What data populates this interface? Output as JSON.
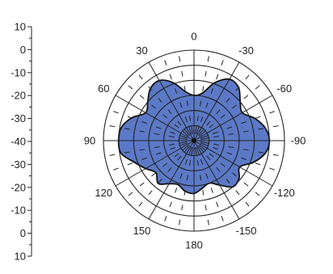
{
  "chart_data": {
    "type": "polar-area",
    "title": "",
    "angle_labels": [
      {
        "deg": 0,
        "text": "0"
      },
      {
        "deg": -30,
        "text": "-30"
      },
      {
        "deg": -60,
        "text": "-60"
      },
      {
        "deg": -90,
        "text": "-90"
      },
      {
        "deg": -120,
        "text": "-120"
      },
      {
        "deg": -150,
        "text": "-150"
      },
      {
        "deg": 180,
        "text": "180"
      },
      {
        "deg": 150,
        "text": "150"
      },
      {
        "deg": 120,
        "text": "120"
      },
      {
        "deg": 90,
        "text": "90"
      },
      {
        "deg": 60,
        "text": "60"
      },
      {
        "deg": 30,
        "text": "30"
      }
    ],
    "radial_axis": {
      "min": -50,
      "max": 10,
      "grid_levels": [
        -40,
        -30,
        -20,
        -10,
        0,
        10
      ],
      "tick_labels": [
        "10",
        "0",
        "-10",
        "-20",
        "-30",
        "-40",
        "-30",
        "-20",
        "-10",
        "0",
        "10"
      ]
    },
    "series": [
      {
        "fill_color": "#5b79c6",
        "line_color": "#111111",
        "points": [
          [
            0,
            -20
          ],
          [
            10,
            -17
          ],
          [
            20,
            -9
          ],
          [
            30,
            -4
          ],
          [
            40,
            -5
          ],
          [
            50,
            -10
          ],
          [
            60,
            -13
          ],
          [
            70,
            -6
          ],
          [
            80,
            -1
          ],
          [
            90,
            0
          ],
          [
            100,
            -1
          ],
          [
            110,
            -8
          ],
          [
            120,
            -13
          ],
          [
            130,
            -17
          ],
          [
            140,
            -13
          ],
          [
            150,
            -17
          ],
          [
            160,
            -19
          ],
          [
            170,
            -16
          ],
          [
            180,
            -15
          ],
          [
            190,
            -18
          ],
          [
            200,
            -20
          ],
          [
            210,
            -16
          ],
          [
            220,
            -10
          ],
          [
            230,
            -11
          ],
          [
            240,
            -15
          ],
          [
            250,
            -8
          ],
          [
            260,
            -2
          ],
          [
            270,
            0
          ],
          [
            280,
            -2
          ],
          [
            290,
            -7
          ],
          [
            300,
            -13
          ],
          [
            310,
            -10
          ],
          [
            320,
            -4
          ],
          [
            330,
            -3
          ],
          [
            340,
            -9
          ],
          [
            350,
            -18
          ]
        ]
      }
    ]
  }
}
